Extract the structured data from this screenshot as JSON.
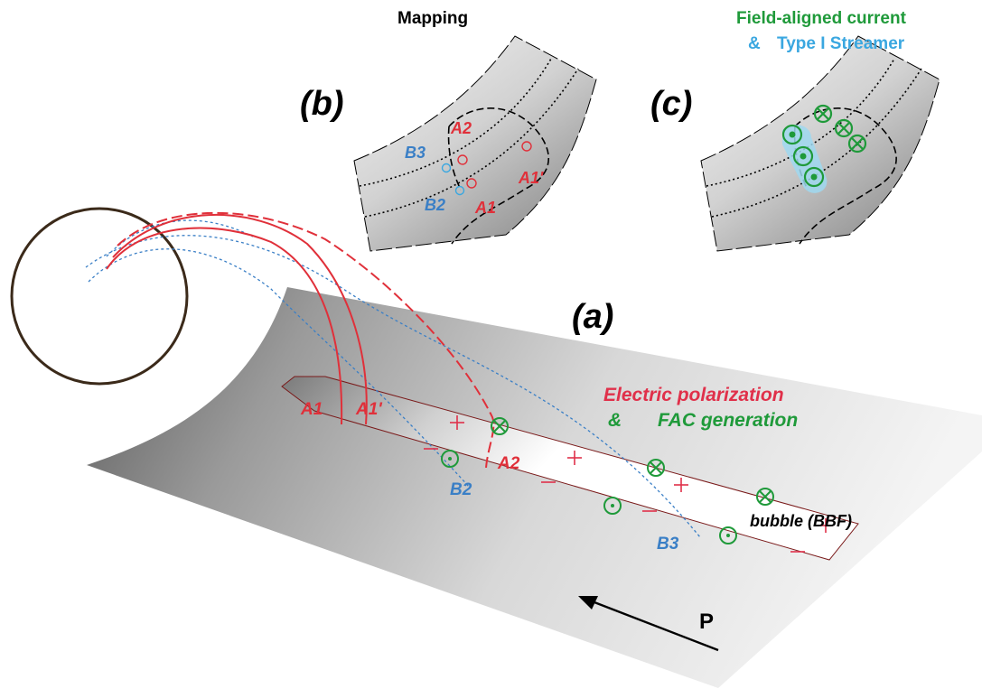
{
  "panel_b": {
    "label": "(b)",
    "title": "Mapping",
    "marks": [
      "A2",
      "B3",
      "A1'",
      "B2",
      "A1"
    ]
  },
  "panel_c": {
    "label": "(c)",
    "title_line1": "Field-aligned current",
    "title_line2_amp": "&",
    "title_line2": "Type I  Streamer"
  },
  "panel_a": {
    "label": "(a)",
    "legend_line1": "Electric  polarization",
    "legend_line2_amp": "&",
    "legend_line2": "FAC  generation",
    "labels": {
      "A1": "A1",
      "A1p": "A1'",
      "A2": "A2",
      "B2": "B2",
      "B3": "B3",
      "bubble": "bubble (BBF)",
      "P": "P"
    }
  },
  "colors": {
    "red": "#e0303a",
    "blue": "#3a7fc6",
    "green": "#1f9a3a",
    "light_blue": "#3aa7e0",
    "magenta": "#e0304a",
    "circle": "#3b2a1a"
  }
}
